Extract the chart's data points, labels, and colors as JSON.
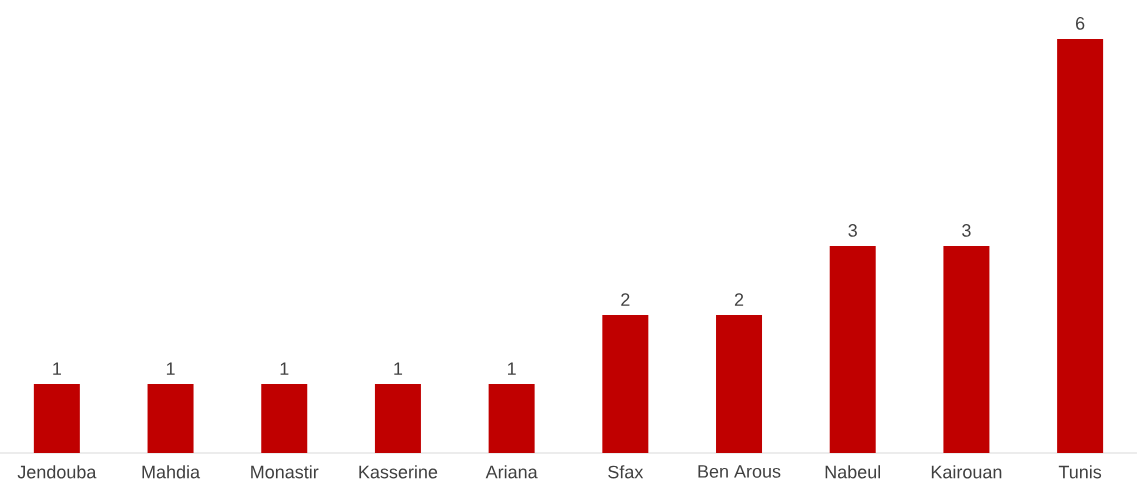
{
  "chart_data": {
    "type": "bar",
    "categories": [
      "Jendouba",
      "Mahdia",
      "Monastir",
      "Kasserine",
      "Ariana",
      "Sfax",
      "Ben Arous",
      "Nabeul",
      "Kairouan",
      "Tunis"
    ],
    "values": [
      1,
      1,
      1,
      1,
      1,
      2,
      2,
      3,
      3,
      6
    ],
    "color": "#c00000",
    "data_labels": true
  }
}
